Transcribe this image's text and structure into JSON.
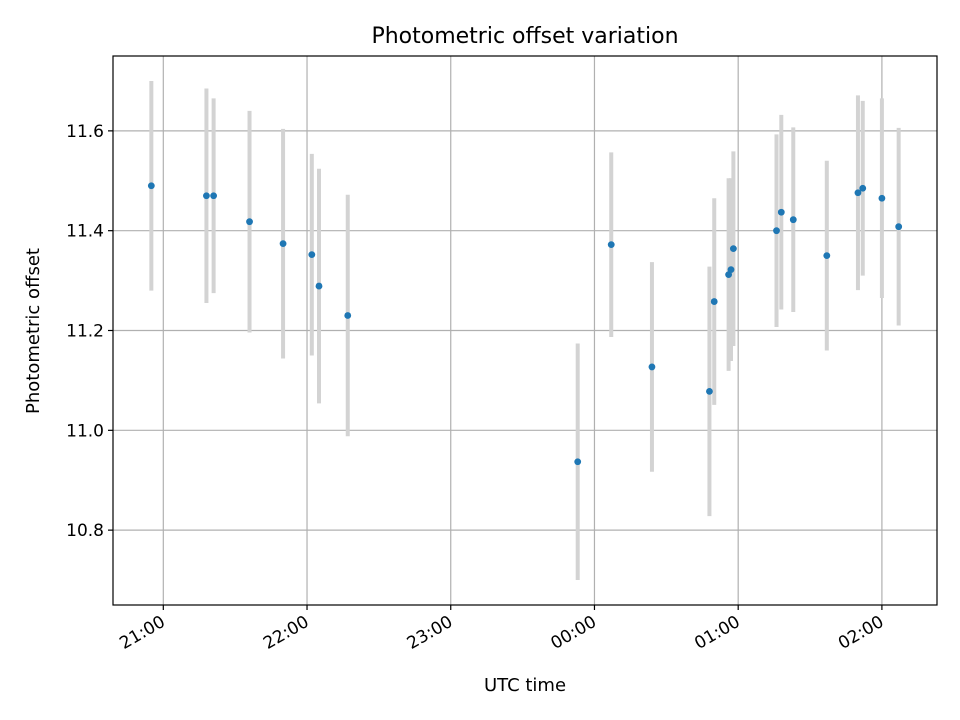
{
  "chart_data": {
    "type": "scatter",
    "title": "Photometric offset variation",
    "xlabel": "UTC time",
    "ylabel": "Photometric offset",
    "x_ticks": [
      "21:00",
      "22:00",
      "23:00",
      "00:00",
      "01:00",
      "02:00"
    ],
    "y_ticks": [
      "10.8",
      "11.0",
      "11.2",
      "11.4",
      "11.6"
    ],
    "ylim": [
      10.65,
      11.75
    ],
    "xlim": [
      "20:39",
      "02:23"
    ],
    "grid": true,
    "point_color": "#1f77b4",
    "errorbar_color": "#d3d3d3",
    "points": [
      {
        "time": "20:55",
        "value": 11.49,
        "error": 0.21
      },
      {
        "time": "21:18",
        "value": 11.47,
        "error": 0.215
      },
      {
        "time": "21:21",
        "value": 11.47,
        "error": 0.195
      },
      {
        "time": "21:36",
        "value": 11.418,
        "error": 0.222
      },
      {
        "time": "21:50",
        "value": 11.374,
        "error": 0.23
      },
      {
        "time": "22:02",
        "value": 11.352,
        "error": 0.202
      },
      {
        "time": "22:05",
        "value": 11.289,
        "error": 0.235
      },
      {
        "time": "22:17",
        "value": 11.23,
        "error": 0.242
      },
      {
        "time": "23:53",
        "value": 10.937,
        "error": 0.237
      },
      {
        "time": "00:07",
        "value": 11.372,
        "error": 0.185
      },
      {
        "time": "00:24",
        "value": 11.127,
        "error": 0.21
      },
      {
        "time": "00:48",
        "value": 11.078,
        "error": 0.25
      },
      {
        "time": "00:50",
        "value": 11.258,
        "error": 0.207
      },
      {
        "time": "00:56",
        "value": 11.312,
        "error": 0.193
      },
      {
        "time": "00:57",
        "value": 11.322,
        "error": 0.183
      },
      {
        "time": "00:58",
        "value": 11.364,
        "error": 0.195
      },
      {
        "time": "01:16",
        "value": 11.4,
        "error": 0.193
      },
      {
        "time": "01:18",
        "value": 11.437,
        "error": 0.195
      },
      {
        "time": "01:23",
        "value": 11.422,
        "error": 0.185
      },
      {
        "time": "01:37",
        "value": 11.35,
        "error": 0.19
      },
      {
        "time": "01:50",
        "value": 11.476,
        "error": 0.195
      },
      {
        "time": "01:52",
        "value": 11.485,
        "error": 0.175
      },
      {
        "time": "02:00",
        "value": 11.465,
        "error": 0.2
      },
      {
        "time": "02:07",
        "value": 11.408,
        "error": 0.198
      }
    ]
  }
}
